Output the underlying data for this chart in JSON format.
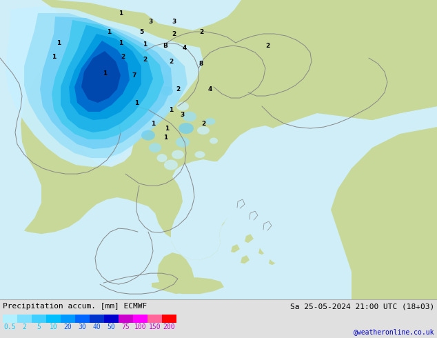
{
  "title_left": "Precipitation accum. [mm] ECMWF",
  "title_right": "Sa 25-05-2024 21:00 UTC (18+03)",
  "credit": "@weatheronline.co.uk",
  "colorbar_labels": [
    "0.5",
    "2",
    "5",
    "10",
    "20",
    "30",
    "40",
    "50",
    "75",
    "100",
    "150",
    "200"
  ],
  "colorbar_colors": [
    "#b3f0ff",
    "#7fdfff",
    "#40cfff",
    "#00bfff",
    "#0099ff",
    "#0066ff",
    "#0033cc",
    "#0000cc",
    "#cc00cc",
    "#ff00ff",
    "#ff6699",
    "#ff0000"
  ],
  "colorbar_label_colors": [
    "#00ccff",
    "#00ccff",
    "#00ccff",
    "#00ccff",
    "#0055ff",
    "#0055ff",
    "#0055ff",
    "#0055ff",
    "#cc00cc",
    "#cc00cc",
    "#cc00cc",
    "#cc00cc"
  ],
  "outer_bg": "#c8c8c8",
  "land_color": "#c8d898",
  "sea_color": "#d0eef8",
  "border_color": "#aaaaaa",
  "footer_bg": "#e0e0e0",
  "title_color": "#000000",
  "credit_color": "#0000cc",
  "figsize": [
    6.34,
    4.9
  ],
  "dpi": 100
}
